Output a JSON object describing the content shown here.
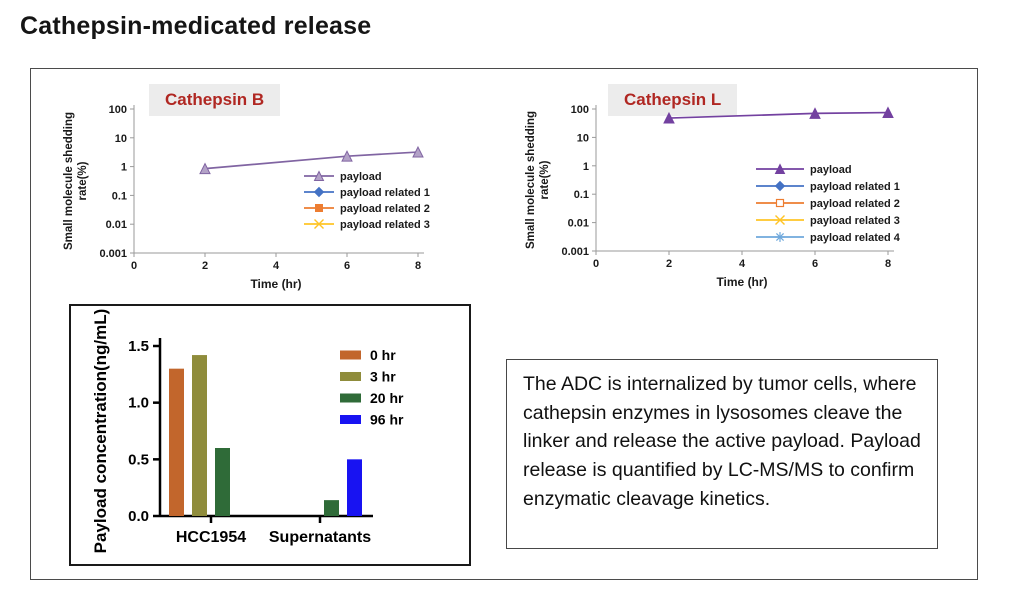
{
  "page": {
    "title": "Cathepsin-medicated release"
  },
  "colors": {
    "chart_title_text": "#b02722",
    "chart_title_bg": "#ececec",
    "payload_purple_b": "#8064a2",
    "payload_purple_l": "#7341a0",
    "bar_0hr": "#c2662c",
    "bar_3hr": "#8f8c3b",
    "bar_20hr": "#2f6b38",
    "bar_96hr": "#1813f2"
  },
  "chart_data": [
    {
      "id": "cathepsin_b",
      "type": "line",
      "title": "Cathepsin B",
      "xlabel": "Time (hr)",
      "ylabel_lines": [
        "Small molecule shedding",
        "rate(%)"
      ],
      "x_ticks": [
        "0",
        "2",
        "4",
        "6",
        "8"
      ],
      "xlim": [
        0,
        8
      ],
      "y_scale": "log",
      "y_ticks": [
        "100",
        "10",
        "1",
        "0.1",
        "0.01",
        "0.001"
      ],
      "ylim": [
        0.001,
        100
      ],
      "grid": false,
      "legend_position": "inside-right",
      "series": [
        {
          "name": "payload",
          "color": "#8064a2",
          "marker": "triangle",
          "marker_fill": "#b3a2c7",
          "x": [
            2,
            6,
            8
          ],
          "y": [
            0.85,
            2.3,
            3.2
          ]
        },
        {
          "name": "payload related 1",
          "color": "#4472c4",
          "marker": "diamond",
          "marker_fill": "#4472c4",
          "x": [],
          "y": []
        },
        {
          "name": "payload related 2",
          "color": "#ed7d31",
          "marker": "square",
          "marker_fill": "#ed7d31",
          "x": [],
          "y": []
        },
        {
          "name": "payload related 3",
          "color": "#ffc426",
          "marker": "x",
          "marker_fill": "#ffc426",
          "x": [],
          "y": []
        }
      ]
    },
    {
      "id": "cathepsin_l",
      "type": "line",
      "title": "Cathepsin L",
      "xlabel": "Time (hr)",
      "ylabel_lines": [
        "Small molecule shedding",
        "rate(%)"
      ],
      "x_ticks": [
        "0",
        "2",
        "4",
        "6",
        "8"
      ],
      "xlim": [
        0,
        8
      ],
      "y_scale": "log",
      "y_ticks": [
        "100",
        "10",
        "1",
        "0.1",
        "0.01",
        "0.001"
      ],
      "ylim": [
        0.001,
        100
      ],
      "grid": false,
      "legend_position": "inside-right",
      "series": [
        {
          "name": "payload",
          "color": "#7341a0",
          "marker": "triangle",
          "marker_fill": "#7341a0",
          "x": [
            2,
            6,
            8
          ],
          "y": [
            48,
            70,
            75
          ]
        },
        {
          "name": "payload related 1",
          "color": "#4472c4",
          "marker": "diamond",
          "marker_fill": "#4472c4",
          "x": [],
          "y": []
        },
        {
          "name": "payload related 2",
          "color": "#ed7d31",
          "marker": "square-open",
          "marker_fill": "#ffffff",
          "x": [],
          "y": []
        },
        {
          "name": "payload related 3",
          "color": "#ffc426",
          "marker": "x",
          "marker_fill": "#ffc426",
          "x": [],
          "y": []
        },
        {
          "name": "payload related 4",
          "color": "#6fa8dc",
          "marker": "asterisk",
          "marker_fill": "#6fa8dc",
          "x": [],
          "y": []
        }
      ]
    },
    {
      "id": "payload_bar",
      "type": "bar",
      "title": "",
      "xlabel": "",
      "ylabel": "Payload concentration(ng/mL)",
      "categories": [
        "HCC1954",
        "Supernatants"
      ],
      "y_ticks": [
        "0.0",
        "0.5",
        "1.0",
        "1.5"
      ],
      "ylim": [
        0,
        1.5
      ],
      "grid": false,
      "legend_position": "inside-right",
      "series": [
        {
          "name": "0 hr",
          "color": "#c2662c",
          "values": [
            1.3,
            0
          ]
        },
        {
          "name": "3 hr",
          "color": "#8f8c3b",
          "values": [
            1.42,
            0
          ]
        },
        {
          "name": "20 hr",
          "color": "#2f6b38",
          "values": [
            0.6,
            0.14
          ]
        },
        {
          "name": "96 hr",
          "color": "#1813f2",
          "values": [
            0,
            0.5
          ]
        }
      ]
    }
  ],
  "description_box": {
    "text": "The ADC is internalized by tumor cells, where cathepsin enzymes in lysosomes cleave the linker and release the active payload. Payload release is quantified by LC-MS/MS to confirm enzymatic cleavage kinetics."
  }
}
